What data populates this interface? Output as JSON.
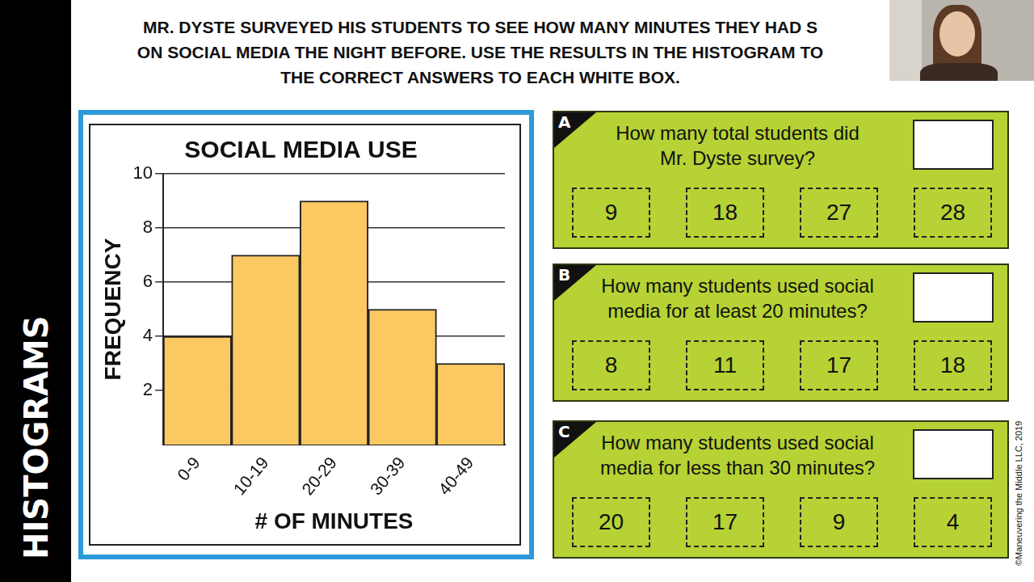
{
  "chart_data": {
    "type": "bar",
    "title": "SOCIAL MEDIA USE",
    "x_label": "# OF MINUTES",
    "y_label": "FREQUENCY",
    "categories": [
      "0-9",
      "10-19",
      "20-29",
      "30-39",
      "40-49"
    ],
    "values": [
      4,
      7,
      9,
      5,
      3
    ],
    "color": "#fcc862",
    "ylim": [
      0,
      10
    ],
    "yticks": [
      2,
      4,
      6,
      8,
      10
    ],
    "grid": true
  },
  "heading": [
    "MR. DYSTE SURVEYED HIS STUDENTS TO SEE HOW MANY MINUTES THEY HAD S",
    "ON SOCIAL MEDIA THE NIGHT BEFORE. USE THE RESULTS IN THE HISTOGRAM TO",
    "THE CORRECT ANSWERS TO EACH WHITE BOX."
  ],
  "side_label": "HISTOGRAMS",
  "credit": "©Maneuvering the Middle LLC, 2019",
  "questions": [
    {
      "letter": "A",
      "text": [
        "How many total students did",
        "Mr. Dyste survey?"
      ],
      "options": [
        9,
        18,
        27,
        28
      ]
    },
    {
      "letter": "B",
      "text": [
        "How many students used social",
        "media for at least 20 minutes?"
      ],
      "options": [
        8,
        11,
        17,
        18
      ]
    },
    {
      "letter": "C",
      "text": [
        "How many students used social",
        "media for less than 30 minutes?"
      ],
      "options": [
        20,
        17,
        9,
        4
      ]
    }
  ]
}
